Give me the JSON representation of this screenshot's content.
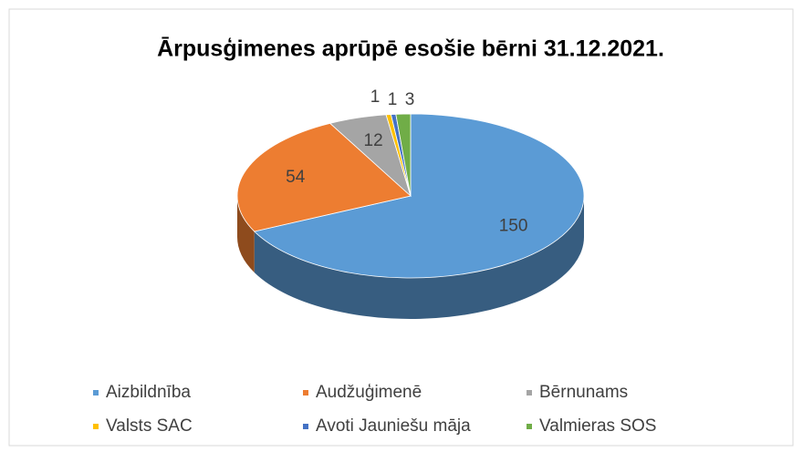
{
  "chart_data": {
    "type": "pie",
    "title": "Ārpusģimenes aprūpē esošie bērni 31.12.2021.",
    "categories": [
      "Aizbildnība",
      "Audžuģimenē",
      "Bērnunams",
      "Valsts SAC",
      "Avoti Jauniešu māja",
      "Valmieras SOS"
    ],
    "values": [
      150,
      54,
      12,
      1,
      1,
      3
    ],
    "colors": [
      "#5b9bd5",
      "#ed7d31",
      "#a5a5a5",
      "#ffc000",
      "#4472c4",
      "#70ad47"
    ],
    "legend": "bottom"
  }
}
